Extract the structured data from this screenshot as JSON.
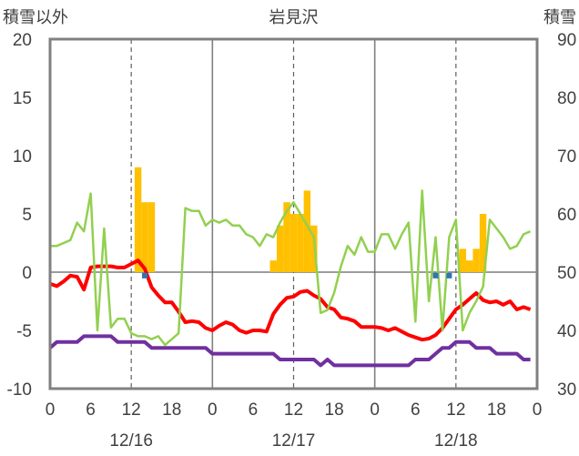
{
  "chart_data": {
    "type": "bar+line",
    "title": "岩見沢",
    "left_axis_label": "積雪以外",
    "right_axis_label": "積雪",
    "left_ylim": [
      -10,
      20
    ],
    "left_ticks": [
      "-10",
      "-5",
      "0",
      "5",
      "10",
      "15",
      "20"
    ],
    "right_ylim": [
      30,
      90
    ],
    "right_ticks": [
      "30",
      "40",
      "50",
      "60",
      "70",
      "80",
      "90"
    ],
    "x_range_hours": [
      0,
      72
    ],
    "x_tick_hours": [
      0,
      6,
      12,
      18,
      24,
      30,
      36,
      42,
      48,
      54,
      60,
      66,
      72
    ],
    "x_tick_labels": [
      "0",
      "6",
      "12",
      "18",
      "0",
      "6",
      "12",
      "18",
      "0",
      "6",
      "12",
      "18",
      "0"
    ],
    "date_labels": [
      {
        "hour": 12,
        "text": "12/16"
      },
      {
        "hour": 36,
        "text": "12/17"
      },
      {
        "hour": 60,
        "text": "12/18"
      }
    ],
    "grid": {
      "dashed_hours": [
        12,
        36,
        60
      ],
      "solid_hours": [
        24,
        48
      ]
    },
    "colors": {
      "precip": "#ffc000",
      "temperature": "#ff0000",
      "snow_depth": "#92d050",
      "wind": "#7030a0",
      "marker": "#2e75b6",
      "axis": "#808080"
    },
    "series": [
      {
        "axis": "left",
        "type": "bar",
        "values": [
          [
            13,
            9
          ],
          [
            14,
            6
          ],
          [
            15,
            6
          ],
          [
            33,
            1
          ],
          [
            34,
            4
          ],
          [
            35,
            6
          ],
          [
            36,
            5
          ],
          [
            37,
            5
          ],
          [
            38,
            7
          ],
          [
            39,
            4
          ],
          [
            61,
            2
          ],
          [
            62,
            1
          ],
          [
            63,
            2
          ],
          [
            64,
            5
          ]
        ]
      },
      {
        "axis": "left",
        "type": "line",
        "values": [
          [
            0,
            -1.0
          ],
          [
            1,
            -1.2
          ],
          [
            2,
            -0.8
          ],
          [
            3,
            -0.3
          ],
          [
            4,
            -0.4
          ],
          [
            5,
            -1.5
          ],
          [
            6,
            0.4
          ],
          [
            7,
            0.5
          ],
          [
            8,
            0.5
          ],
          [
            9,
            0.5
          ],
          [
            10,
            0.4
          ],
          [
            11,
            0.4
          ],
          [
            12,
            0.7
          ],
          [
            13,
            1.0
          ],
          [
            14,
            0.3
          ],
          [
            15,
            -1.3
          ],
          [
            16,
            -2.0
          ],
          [
            17,
            -2.6
          ],
          [
            18,
            -2.6
          ],
          [
            19,
            -3.4
          ],
          [
            20,
            -4.3
          ],
          [
            21,
            -4.2
          ],
          [
            22,
            -4.3
          ],
          [
            23,
            -4.8
          ],
          [
            24,
            -5.0
          ],
          [
            25,
            -4.6
          ],
          [
            26,
            -4.3
          ],
          [
            27,
            -4.5
          ],
          [
            28,
            -5.0
          ],
          [
            29,
            -5.2
          ],
          [
            30,
            -5.0
          ],
          [
            31,
            -5.0
          ],
          [
            32,
            -5.1
          ],
          [
            33,
            -3.6
          ],
          [
            34,
            -2.8
          ],
          [
            35,
            -2.2
          ],
          [
            36,
            -2.1
          ],
          [
            37,
            -1.7
          ],
          [
            38,
            -1.6
          ],
          [
            39,
            -2.0
          ],
          [
            40,
            -2.3
          ],
          [
            41,
            -3.0
          ],
          [
            42,
            -3.2
          ],
          [
            43,
            -3.9
          ],
          [
            44,
            -4.0
          ],
          [
            45,
            -4.2
          ],
          [
            46,
            -4.7
          ],
          [
            47,
            -4.7
          ],
          [
            48,
            -4.7
          ],
          [
            49,
            -4.8
          ],
          [
            50,
            -5.0
          ],
          [
            51,
            -4.8
          ],
          [
            52,
            -5.1
          ],
          [
            53,
            -5.4
          ],
          [
            54,
            -5.6
          ],
          [
            55,
            -5.8
          ],
          [
            56,
            -5.7
          ],
          [
            57,
            -5.4
          ],
          [
            58,
            -4.8
          ],
          [
            59,
            -4.0
          ],
          [
            60,
            -3.2
          ],
          [
            61,
            -2.8
          ],
          [
            62,
            -2.3
          ],
          [
            63,
            -1.8
          ],
          [
            64,
            -2.4
          ],
          [
            65,
            -2.6
          ],
          [
            66,
            -2.5
          ],
          [
            67,
            -2.8
          ],
          [
            68,
            -2.5
          ],
          [
            69,
            -3.2
          ],
          [
            70,
            -3.0
          ],
          [
            71,
            -3.2
          ]
        ]
      },
      {
        "axis": "right",
        "type": "line",
        "values": [
          [
            0,
            54.5
          ],
          [
            1,
            54.5
          ],
          [
            2,
            55
          ],
          [
            3,
            55.5
          ],
          [
            4,
            58.5
          ],
          [
            5,
            57
          ],
          [
            6,
            63.5
          ],
          [
            7,
            40
          ],
          [
            8,
            57.5
          ],
          [
            9,
            40.5
          ],
          [
            10,
            42
          ],
          [
            11,
            42
          ],
          [
            12,
            39.5
          ],
          [
            13,
            39
          ],
          [
            14,
            39
          ],
          [
            15,
            38.5
          ],
          [
            16,
            39
          ],
          [
            17,
            37.5
          ],
          [
            18,
            38.5
          ],
          [
            19,
            39.5
          ],
          [
            20,
            61
          ],
          [
            21,
            60.5
          ],
          [
            22,
            60.5
          ],
          [
            23,
            58
          ],
          [
            24,
            59
          ],
          [
            25,
            58.5
          ],
          [
            26,
            59
          ],
          [
            27,
            58
          ],
          [
            28,
            58
          ],
          [
            29,
            56.5
          ],
          [
            30,
            56
          ],
          [
            31,
            54.5
          ],
          [
            32,
            56.5
          ],
          [
            33,
            56
          ],
          [
            34,
            58.5
          ],
          [
            35,
            60.5
          ],
          [
            36,
            62
          ],
          [
            37,
            60
          ],
          [
            38,
            58
          ],
          [
            39,
            56
          ],
          [
            40,
            43
          ],
          [
            41,
            43.5
          ],
          [
            42,
            46.5
          ],
          [
            43,
            51
          ],
          [
            44,
            54.5
          ],
          [
            45,
            53
          ],
          [
            46,
            56
          ],
          [
            47,
            53.5
          ],
          [
            48,
            53.5
          ],
          [
            49,
            56.5
          ],
          [
            50,
            56.5
          ],
          [
            51,
            54
          ],
          [
            52,
            56.5
          ],
          [
            53,
            58.5
          ],
          [
            54,
            41.5
          ],
          [
            55,
            64
          ],
          [
            56,
            45
          ],
          [
            57,
            56
          ],
          [
            58,
            40
          ],
          [
            59,
            56
          ],
          [
            60,
            59
          ],
          [
            61,
            40
          ],
          [
            62,
            43
          ],
          [
            63,
            45
          ],
          [
            64,
            47.5
          ],
          [
            65,
            59
          ],
          [
            66,
            57.5
          ],
          [
            67,
            56
          ],
          [
            68,
            54
          ],
          [
            69,
            54.5
          ],
          [
            70,
            56.5
          ],
          [
            71,
            57
          ]
        ]
      },
      {
        "axis": "left",
        "type": "line",
        "values": [
          [
            0,
            -6.5
          ],
          [
            1,
            -6.0
          ],
          [
            2,
            -6.0
          ],
          [
            3,
            -6.0
          ],
          [
            4,
            -6.0
          ],
          [
            5,
            -5.5
          ],
          [
            6,
            -5.5
          ],
          [
            7,
            -5.5
          ],
          [
            8,
            -5.5
          ],
          [
            9,
            -5.5
          ],
          [
            10,
            -6.0
          ],
          [
            11,
            -6.0
          ],
          [
            12,
            -6.0
          ],
          [
            13,
            -6.0
          ],
          [
            14,
            -6.0
          ],
          [
            15,
            -6.5
          ],
          [
            16,
            -6.5
          ],
          [
            17,
            -6.5
          ],
          [
            18,
            -6.5
          ],
          [
            19,
            -6.5
          ],
          [
            20,
            -6.5
          ],
          [
            21,
            -6.5
          ],
          [
            22,
            -6.5
          ],
          [
            23,
            -6.5
          ],
          [
            24,
            -7.0
          ],
          [
            25,
            -7.0
          ],
          [
            26,
            -7.0
          ],
          [
            27,
            -7.0
          ],
          [
            28,
            -7.0
          ],
          [
            29,
            -7.0
          ],
          [
            30,
            -7.0
          ],
          [
            31,
            -7.0
          ],
          [
            32,
            -7.0
          ],
          [
            33,
            -7.0
          ],
          [
            34,
            -7.5
          ],
          [
            35,
            -7.5
          ],
          [
            36,
            -7.5
          ],
          [
            37,
            -7.5
          ],
          [
            38,
            -7.5
          ],
          [
            39,
            -7.5
          ],
          [
            40,
            -8.0
          ],
          [
            41,
            -7.5
          ],
          [
            42,
            -8.0
          ],
          [
            43,
            -8.0
          ],
          [
            44,
            -8.0
          ],
          [
            45,
            -8.0
          ],
          [
            46,
            -8.0
          ],
          [
            47,
            -8.0
          ],
          [
            48,
            -8.0
          ],
          [
            49,
            -8.0
          ],
          [
            50,
            -8.0
          ],
          [
            51,
            -8.0
          ],
          [
            52,
            -8.0
          ],
          [
            53,
            -8.0
          ],
          [
            54,
            -7.5
          ],
          [
            55,
            -7.5
          ],
          [
            56,
            -7.5
          ],
          [
            57,
            -7.0
          ],
          [
            58,
            -6.5
          ],
          [
            59,
            -6.5
          ],
          [
            60,
            -6.0
          ],
          [
            61,
            -6.0
          ],
          [
            62,
            -6.0
          ],
          [
            63,
            -6.5
          ],
          [
            64,
            -6.5
          ],
          [
            65,
            -6.5
          ],
          [
            66,
            -7.0
          ],
          [
            67,
            -7.0
          ],
          [
            68,
            -7.0
          ],
          [
            69,
            -7.0
          ],
          [
            70,
            -7.5
          ],
          [
            71,
            -7.5
          ]
        ]
      },
      {
        "axis": "left",
        "type": "marker",
        "values": [
          [
            14,
            -0.3
          ],
          [
            57,
            -0.3
          ],
          [
            59,
            -0.3
          ]
        ]
      }
    ]
  }
}
